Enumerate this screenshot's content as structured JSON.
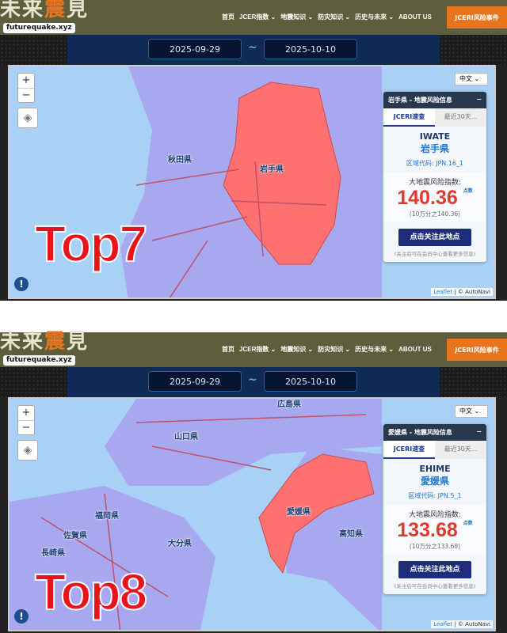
{
  "header": {
    "logo": "未来震見",
    "site": "futurequake.xyz",
    "nav": [
      "首页",
      "JCER指数 ⌄",
      "地震知识 ⌄",
      "防灾知识 ⌄",
      "历史与未来 ⌄",
      "ABOUT US"
    ],
    "cta": "JCERI风险事件"
  },
  "colors": {
    "header": "#5d5f3c",
    "cta": "#e8741e",
    "highlight": "#ff7070",
    "region": "#a8a8f0",
    "sea": "#a9d0f5",
    "value": "#e03a2f"
  },
  "panels": [
    {
      "date_start": "2025-09-29",
      "date_sep": "~",
      "date_end": "2025-10-10",
      "rank": "Top7",
      "lang": "中文",
      "labels": [
        "秋田県",
        "岩手県"
      ],
      "card": {
        "title": "岩手県 - 地震风险信息",
        "collapse": "−",
        "tab1": "JCERI速查",
        "tab2": "最近30天...",
        "en": "IWATE",
        "jp": "岩手県",
        "code": "区域代码: JPN.16_1",
        "risk_label": "大地震风险指数:",
        "value": "140.36",
        "unit": "点数",
        "sub": "(10万分之140.36)",
        "follow": "点击关注此地点",
        "note": "(关注后可在会员中心查看更多信息)"
      },
      "zoom_in": "+",
      "zoom_out": "−",
      "attribution": {
        "leaflet": "Leaflet",
        "sep": " | © AutoNavi"
      }
    },
    {
      "date_start": "2025-09-29",
      "date_sep": "~",
      "date_end": "2025-10-10",
      "rank": "Top8",
      "lang": "中文",
      "labels": [
        "広島県",
        "山口県",
        "福岡県",
        "佐賀県",
        "大分県",
        "愛媛県",
        "高知県",
        "長崎県"
      ],
      "card": {
        "title": "愛媛県 - 地震风险信息",
        "collapse": "−",
        "tab1": "JCERI速查",
        "tab2": "最近30天...",
        "en": "EHIME",
        "jp": "愛媛県",
        "code": "区域代码: JPN.5_1",
        "risk_label": "大地震风险指数:",
        "value": "133.68",
        "unit": "点数",
        "sub": "(10万分之133.68)",
        "follow": "点击关注此地点",
        "note": "(关注后可在会员中心查看更多信息)"
      },
      "zoom_in": "+",
      "zoom_out": "−",
      "attribution": {
        "leaflet": "Leaflet",
        "sep": " | © AutoNavi"
      }
    }
  ]
}
